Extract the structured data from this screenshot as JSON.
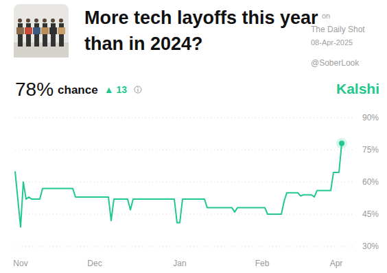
{
  "header": {
    "headline": "78%",
    "headline_suffix": "chance",
    "change": "▲ 13",
    "brand": "Kalshi",
    "watermark": [
      "on",
      "The Daily Shot",
      "08-Apr-2025",
      "@SoberLook"
    ]
  },
  "chart_data": {
    "type": "line",
    "title": "More tech layoffs this year than in 2024?",
    "categories": [
      null,
      null,
      "Nov",
      null,
      null,
      null,
      null,
      null,
      null,
      null,
      null,
      null,
      null,
      null,
      null,
      null,
      null,
      null,
      null,
      null,
      null,
      null,
      null,
      null,
      null,
      null,
      null,
      null,
      null,
      "Dec",
      null,
      null,
      null,
      null,
      null,
      null,
      null,
      null,
      null,
      null,
      null,
      null,
      null,
      null,
      null,
      null,
      null,
      null,
      null,
      null,
      null,
      null,
      null,
      null,
      null,
      null,
      null,
      null,
      null,
      null,
      "Jan",
      null,
      null,
      null,
      null,
      null,
      null,
      null,
      null,
      null,
      null,
      null,
      null,
      null,
      null,
      null,
      null,
      null,
      null,
      null,
      null,
      null,
      null,
      null,
      null,
      null,
      null,
      null,
      null,
      null,
      "Feb",
      null,
      null,
      null,
      null,
      null,
      null,
      null,
      null,
      null,
      null,
      null,
      null,
      null,
      null,
      null,
      null,
      null,
      null,
      null,
      null,
      null,
      null,
      null,
      null,
      null,
      null,
      "Apr",
      null,
      null
    ],
    "values": [
      65,
      52,
      39,
      60,
      52,
      53,
      52,
      52,
      52,
      52,
      57,
      57,
      57,
      57,
      57,
      57,
      57,
      57,
      57,
      57,
      57,
      57,
      53,
      53,
      53,
      53,
      53,
      53,
      53,
      53,
      53,
      53,
      53,
      53,
      53,
      42,
      52,
      52,
      52,
      52,
      52,
      52,
      47,
      52,
      52,
      52,
      52,
      52,
      52,
      52,
      52,
      52,
      52,
      52,
      52,
      52,
      52,
      52,
      52,
      41,
      41,
      52,
      52,
      52,
      52,
      52,
      52,
      52,
      52,
      52,
      48,
      48,
      48,
      48,
      48,
      48,
      48,
      48,
      48,
      48,
      46,
      48,
      48,
      48,
      48,
      48,
      48,
      48,
      48,
      48,
      48,
      48,
      45,
      45,
      45,
      45,
      45,
      45,
      51,
      55,
      55,
      55,
      55,
      55,
      53.5,
      54,
      54,
      54,
      54,
      53,
      56,
      56,
      56,
      56,
      56,
      56,
      64.5,
      64.5,
      64.5,
      78
    ],
    "color": "#21c88b",
    "ylim": [
      30,
      90
    ],
    "yticks": [
      {
        "value": 30,
        "label": "30%"
      },
      {
        "value": 45,
        "label": "45%"
      },
      {
        "value": 60,
        "label": "60%"
      },
      {
        "value": 75,
        "label": "75%"
      },
      {
        "value": 90,
        "label": "90%"
      }
    ],
    "grid": true
  }
}
